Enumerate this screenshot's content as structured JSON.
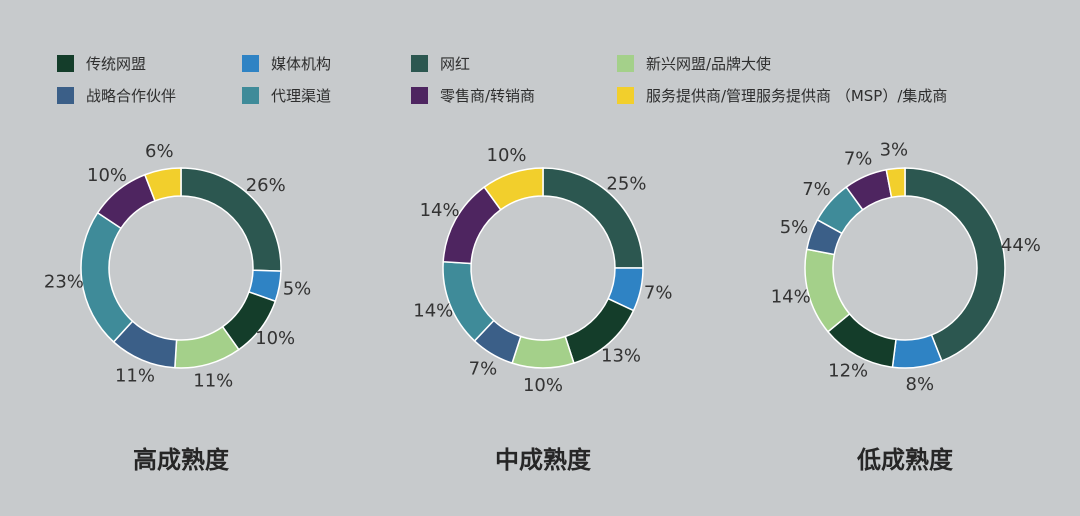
{
  "legend": [
    {
      "label": "传统网盟",
      "color": "#143d2a"
    },
    {
      "label": "媒体机构",
      "color": "#2f83c4"
    },
    {
      "label": "网红",
      "color": "#2c5750"
    },
    {
      "label": "新兴网盟/品牌大使",
      "color": "#a4d08a"
    },
    {
      "label": "战略合作伙伴",
      "color": "#3b5f88"
    },
    {
      "label": "代理渠道",
      "color": "#3f8b99"
    },
    {
      "label": "零售商/转销商",
      "color": "#4e2560"
    },
    {
      "label": "服务提供商/管理服务提供商 （MSP）/集成商",
      "color": "#f2cf2c"
    }
  ],
  "chart_data": [
    {
      "type": "pie",
      "title": "高成熟度",
      "slices": [
        {
          "label": "网红",
          "value": 26,
          "text": "26%"
        },
        {
          "label": "媒体机构",
          "value": 5,
          "text": "5%"
        },
        {
          "label": "传统网盟",
          "value": 10,
          "text": "10%"
        },
        {
          "label": "新兴网盟/品牌大使",
          "value": 11,
          "text": "11%"
        },
        {
          "label": "战略合作伙伴",
          "value": 11,
          "text": "11%"
        },
        {
          "label": "代理渠道",
          "value": 23,
          "text": "23%"
        },
        {
          "label": "零售商/转销商",
          "value": 10,
          "text": "10%"
        },
        {
          "label": "服务提供商/管理服务提供商 （MSP）/集成商",
          "value": 6,
          "text": "6%"
        }
      ]
    },
    {
      "type": "pie",
      "title": "中成熟度",
      "slices": [
        {
          "label": "网红",
          "value": 25,
          "text": "25%"
        },
        {
          "label": "媒体机构",
          "value": 7,
          "text": "7%"
        },
        {
          "label": "传统网盟",
          "value": 13,
          "text": "13%"
        },
        {
          "label": "新兴网盟/品牌大使",
          "value": 10,
          "text": "10%"
        },
        {
          "label": "战略合作伙伴",
          "value": 7,
          "text": "7%"
        },
        {
          "label": "代理渠道",
          "value": 14,
          "text": "14%"
        },
        {
          "label": "零售商/转销商",
          "value": 14,
          "text": "14%"
        },
        {
          "label": "服务提供商/管理服务提供商 （MSP）/集成商",
          "value": 10,
          "text": "10%"
        }
      ]
    },
    {
      "type": "pie",
      "title": "低成熟度",
      "slices": [
        {
          "label": "网红",
          "value": 44,
          "text": "44%"
        },
        {
          "label": "媒体机构",
          "value": 8,
          "text": "8%"
        },
        {
          "label": "传统网盟",
          "value": 12,
          "text": "12%"
        },
        {
          "label": "新兴网盟/品牌大使",
          "value": 14,
          "text": "14%"
        },
        {
          "label": "战略合作伙伴",
          "value": 5,
          "text": "5%"
        },
        {
          "label": "代理渠道",
          "value": 7,
          "text": "7%"
        },
        {
          "label": "零售商/转销商",
          "value": 7,
          "text": "7%"
        },
        {
          "label": "服务提供商/管理服务提供商 （MSP）/集成商",
          "value": 3,
          "text": "3%"
        }
      ]
    }
  ]
}
